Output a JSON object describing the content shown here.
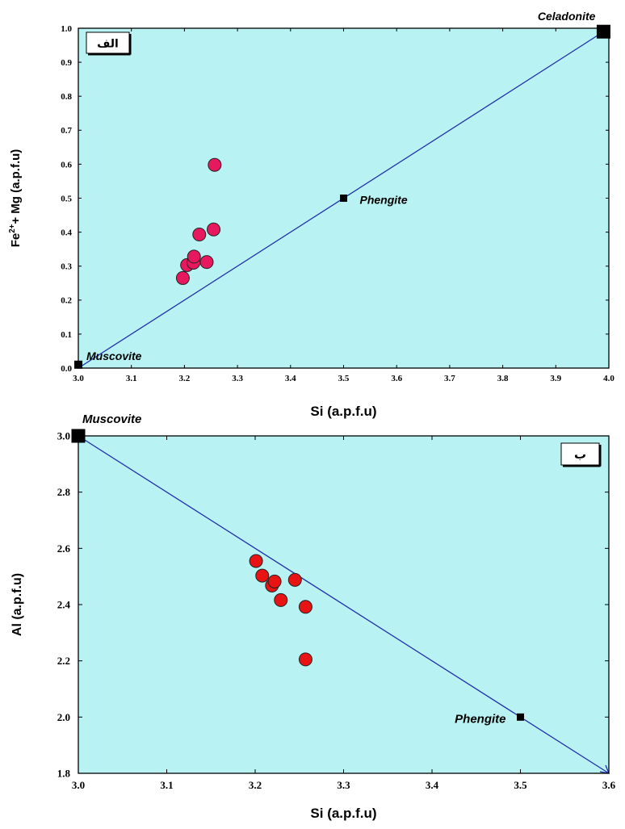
{
  "chart_data": [
    {
      "type": "scatter",
      "xlabel": "Si (a.p.f.u)",
      "ylabel_prefix": "Fe",
      "ylabel_sup": "2+",
      "ylabel_suffix": "+ Mg (a.p.f.u)",
      "xlim": [
        3.0,
        4.0
      ],
      "ylim": [
        0.0,
        1.0
      ],
      "xticks": [
        "3.0",
        "3.1",
        "3.2",
        "3.3",
        "3.4",
        "3.5",
        "3.6",
        "3.7",
        "3.8",
        "3.9",
        "4.0"
      ],
      "yticks": [
        "0.0",
        "0.1",
        "0.2",
        "0.3",
        "0.4",
        "0.5",
        "0.6",
        "0.7",
        "0.8",
        "0.9",
        "1.0"
      ],
      "panel_label": "الف",
      "background": "#b8f2f2",
      "point_color": "#e8185f",
      "line_color": "#1f30a8",
      "reference_line": {
        "x": [
          3.0,
          4.0
        ],
        "y": [
          0.0,
          1.0
        ]
      },
      "end_members": [
        {
          "label": "Muscovite",
          "x": 3.0,
          "y": 0.01
        },
        {
          "label": "Phengite",
          "x": 3.5,
          "y": 0.5
        },
        {
          "label": "Celadonite",
          "x": 3.99,
          "y": 0.99
        }
      ],
      "points": [
        {
          "x": 3.197,
          "y": 0.265
        },
        {
          "x": 3.205,
          "y": 0.303
        },
        {
          "x": 3.217,
          "y": 0.31
        },
        {
          "x": 3.218,
          "y": 0.328
        },
        {
          "x": 3.228,
          "y": 0.393
        },
        {
          "x": 3.242,
          "y": 0.312
        },
        {
          "x": 3.255,
          "y": 0.408
        },
        {
          "x": 3.257,
          "y": 0.598
        }
      ]
    },
    {
      "type": "scatter",
      "xlabel": "Si (a.p.f.u)",
      "ylabel": "Al (a.p.f.u)",
      "xlim": [
        3.0,
        3.6
      ],
      "ylim": [
        1.8,
        3.0
      ],
      "xticks": [
        "3.0",
        "3.1",
        "3.2",
        "3.3",
        "3.4",
        "3.5",
        "3.6"
      ],
      "yticks": [
        "1.8",
        "2.0",
        "2.2",
        "2.4",
        "2.6",
        "2.8",
        "3.0"
      ],
      "panel_label": "ب",
      "background": "#b8f2f2",
      "point_color": "#e81414",
      "line_color": "#1f30a8",
      "reference_line": {
        "x": [
          3.0,
          3.6
        ],
        "y": [
          3.0,
          1.8
        ]
      },
      "end_members": [
        {
          "label": "Muscovite",
          "x": 3.0,
          "y": 3.0
        },
        {
          "label": "Phengite",
          "x": 3.5,
          "y": 2.0
        }
      ],
      "points": [
        {
          "x": 3.201,
          "y": 2.555
        },
        {
          "x": 3.208,
          "y": 2.503
        },
        {
          "x": 3.219,
          "y": 2.468
        },
        {
          "x": 3.222,
          "y": 2.482
        },
        {
          "x": 3.229,
          "y": 2.416
        },
        {
          "x": 3.245,
          "y": 2.488
        },
        {
          "x": 3.257,
          "y": 2.392
        },
        {
          "x": 3.257,
          "y": 2.205
        }
      ]
    }
  ]
}
